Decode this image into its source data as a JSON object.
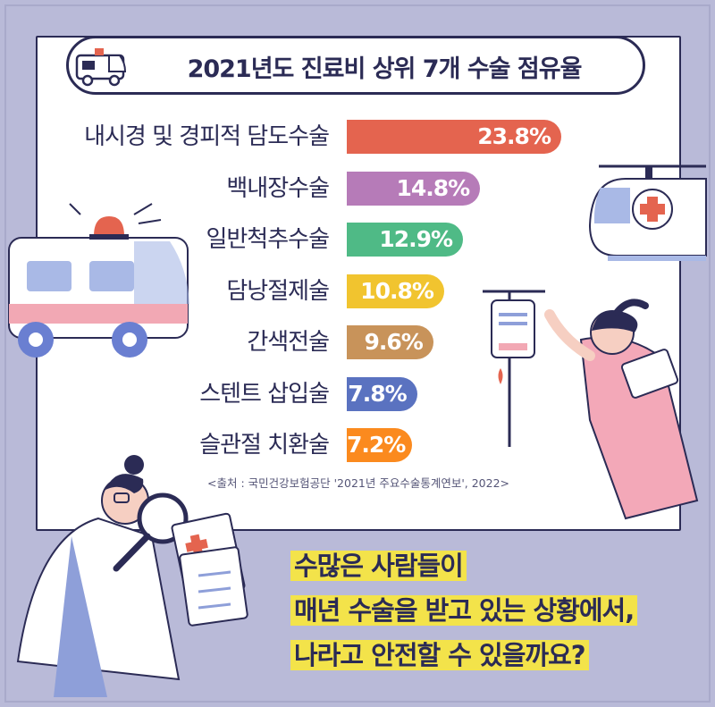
{
  "title": "2021년도 진료비 상위 7개 수술 점유율",
  "source": "<출처 : 국민건강보험공단 '2021년 주요수술통계연보', 2022>",
  "question_lines": [
    "수많은 사람들이",
    "매년 수술을 받고 있는 상황에서,",
    "나라고 안전할 수 있을까요?"
  ],
  "colors": {
    "background": "#b9bad8",
    "navy": "#2b2b55",
    "highlight": "#f3e34a",
    "bars": [
      "#e4644f",
      "#b67bb8",
      "#4fba86",
      "#f1c42f",
      "#c8935a",
      "#5a72c0",
      "#fb8a1e"
    ]
  },
  "icons": [
    "ambulance-icon",
    "ambulance-illustration",
    "helicopter-illustration",
    "doctor-with-magnifier-illustration",
    "nurse-with-iv-illustration"
  ],
  "chart_data": {
    "type": "bar",
    "orientation": "horizontal",
    "categories": [
      "내시경 및 경피적 담도수술",
      "백내장수술",
      "일반척추수술",
      "담낭절제술",
      "간색전술",
      "스텐트 삽입술",
      "슬관절 치환술"
    ],
    "values": [
      23.8,
      14.8,
      12.9,
      10.8,
      9.6,
      7.8,
      7.2
    ],
    "value_labels": [
      "23.8%",
      "14.8%",
      "12.9%",
      "10.8%",
      "9.6%",
      "7.8%",
      "7.2%"
    ],
    "title": "2021년도 진료비 상위 7개 수술 점유율",
    "xlabel": "",
    "ylabel": "",
    "grid": false,
    "legend": "none"
  }
}
